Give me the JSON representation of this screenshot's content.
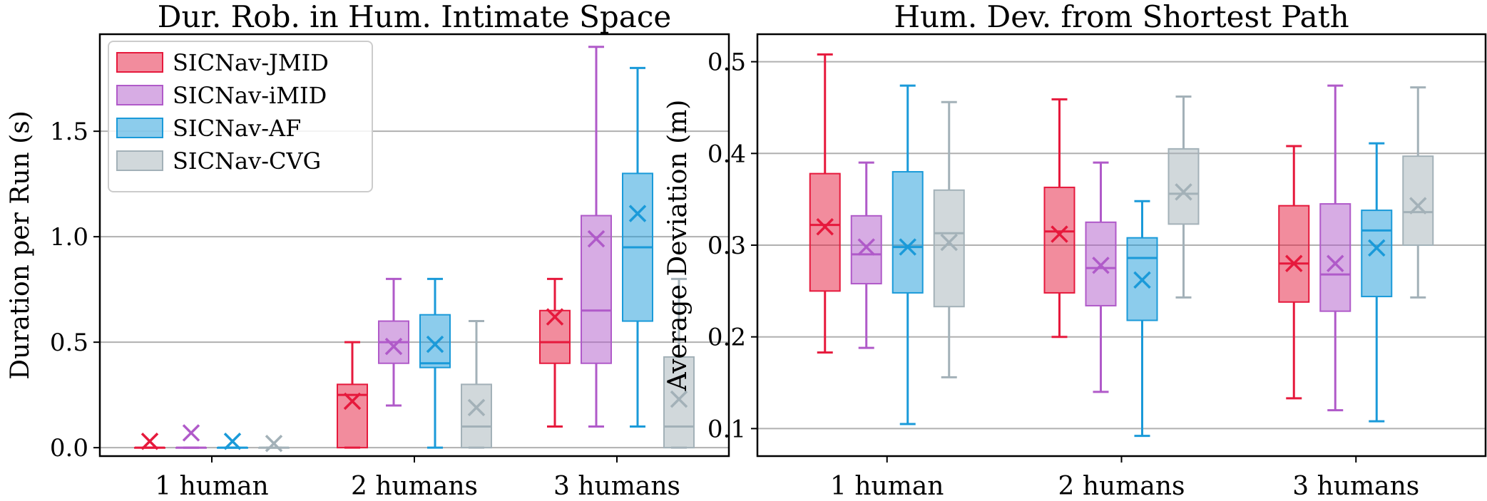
{
  "colors": {
    "grid": "#b0b0b0",
    "axis": "#000000",
    "mean_marker_note": "x-cross marker",
    "series": [
      "#e6193c",
      "#b05ac9",
      "#1a9ad9",
      "#a3b1b8"
    ]
  },
  "chart_data": [
    {
      "type": "box",
      "title": "Dur. Rob. in Hum. Intimate Space",
      "xlabel": "",
      "ylabel": "Duration per Run (s)",
      "ylim": [
        -0.04,
        1.96
      ],
      "yticks": [
        0.0,
        0.5,
        1.0,
        1.5
      ],
      "ytick_labels": [
        "0.0",
        "0.5",
        "1.0",
        "1.5"
      ],
      "grid": true,
      "legend": {
        "placement": "top-left"
      },
      "categories": [
        "1 human",
        "2 humans",
        "3 humans"
      ],
      "series": [
        {
          "name": "SICNav-JMID",
          "boxes": [
            {
              "min": 0.0,
              "q1": 0.0,
              "median": 0.0,
              "q3": 0.0,
              "max": 0.0,
              "mean": 0.03
            },
            {
              "min": 0.0,
              "q1": 0.0,
              "median": 0.25,
              "q3": 0.3,
              "max": 0.5,
              "mean": 0.22
            },
            {
              "min": 0.1,
              "q1": 0.4,
              "median": 0.5,
              "q3": 0.65,
              "max": 0.8,
              "mean": 0.62
            }
          ]
        },
        {
          "name": "SICNav-iMID",
          "boxes": [
            {
              "min": 0.0,
              "q1": 0.0,
              "median": 0.0,
              "q3": 0.0,
              "max": 0.0,
              "mean": 0.07
            },
            {
              "min": 0.2,
              "q1": 0.4,
              "median": 0.5,
              "q3": 0.6,
              "max": 0.8,
              "mean": 0.48
            },
            {
              "min": 0.1,
              "q1": 0.4,
              "median": 0.65,
              "q3": 1.1,
              "max": 1.9,
              "mean": 0.99
            }
          ]
        },
        {
          "name": "SICNav-AF",
          "boxes": [
            {
              "min": 0.0,
              "q1": 0.0,
              "median": 0.0,
              "q3": 0.0,
              "max": 0.0,
              "mean": 0.03
            },
            {
              "min": 0.0,
              "q1": 0.38,
              "median": 0.4,
              "q3": 0.63,
              "max": 0.8,
              "mean": 0.49
            },
            {
              "min": 0.1,
              "q1": 0.6,
              "median": 0.95,
              "q3": 1.3,
              "max": 1.8,
              "mean": 1.11
            }
          ]
        },
        {
          "name": "SICNav-CVG",
          "boxes": [
            {
              "min": 0.0,
              "q1": 0.0,
              "median": 0.0,
              "q3": 0.0,
              "max": 0.0,
              "mean": 0.02
            },
            {
              "min": 0.0,
              "q1": 0.0,
              "median": 0.1,
              "q3": 0.3,
              "max": 0.6,
              "mean": 0.19
            },
            {
              "min": 0.0,
              "q1": 0.0,
              "median": 0.1,
              "q3": 0.43,
              "max": 0.8,
              "mean": 0.23
            }
          ]
        }
      ]
    },
    {
      "type": "box",
      "title": "Hum. Dev. from Shortest Path",
      "xlabel": "",
      "ylabel": "Average Deviation (m)",
      "ylim": [
        0.07,
        0.53
      ],
      "yticks": [
        0.1,
        0.2,
        0.3,
        0.4,
        0.5
      ],
      "ytick_labels": [
        "0.1",
        "0.2",
        "0.3",
        "0.4",
        "0.5"
      ],
      "grid": true,
      "legend": {
        "placement": "none"
      },
      "categories": [
        "1 human",
        "2 humans",
        "3 humans"
      ],
      "series": [
        {
          "name": "SICNav-JMID",
          "boxes": [
            {
              "min": 0.183,
              "q1": 0.25,
              "median": 0.322,
              "q3": 0.378,
              "max": 0.508,
              "mean": 0.32
            },
            {
              "min": 0.2,
              "q1": 0.248,
              "median": 0.315,
              "q3": 0.363,
              "max": 0.459,
              "mean": 0.312
            },
            {
              "min": 0.133,
              "q1": 0.238,
              "median": 0.28,
              "q3": 0.343,
              "max": 0.408,
              "mean": 0.28
            }
          ]
        },
        {
          "name": "SICNav-iMID",
          "boxes": [
            {
              "min": 0.188,
              "q1": 0.258,
              "median": 0.29,
              "q3": 0.332,
              "max": 0.39,
              "mean": 0.298
            },
            {
              "min": 0.14,
              "q1": 0.234,
              "median": 0.275,
              "q3": 0.325,
              "max": 0.39,
              "mean": 0.278
            },
            {
              "min": 0.12,
              "q1": 0.228,
              "median": 0.268,
              "q3": 0.345,
              "max": 0.474,
              "mean": 0.28
            }
          ]
        },
        {
          "name": "SICNav-AF",
          "boxes": [
            {
              "min": 0.105,
              "q1": 0.248,
              "median": 0.298,
              "q3": 0.38,
              "max": 0.474,
              "mean": 0.298
            },
            {
              "min": 0.092,
              "q1": 0.218,
              "median": 0.286,
              "q3": 0.308,
              "max": 0.348,
              "mean": 0.262
            },
            {
              "min": 0.108,
              "q1": 0.244,
              "median": 0.316,
              "q3": 0.338,
              "max": 0.411,
              "mean": 0.297
            }
          ]
        },
        {
          "name": "SICNav-CVG",
          "boxes": [
            {
              "min": 0.156,
              "q1": 0.233,
              "median": 0.313,
              "q3": 0.36,
              "max": 0.456,
              "mean": 0.303
            },
            {
              "min": 0.243,
              "q1": 0.323,
              "median": 0.356,
              "q3": 0.405,
              "max": 0.462,
              "mean": 0.358
            },
            {
              "min": 0.243,
              "q1": 0.3,
              "median": 0.336,
              "q3": 0.397,
              "max": 0.472,
              "mean": 0.343
            }
          ]
        }
      ]
    }
  ]
}
